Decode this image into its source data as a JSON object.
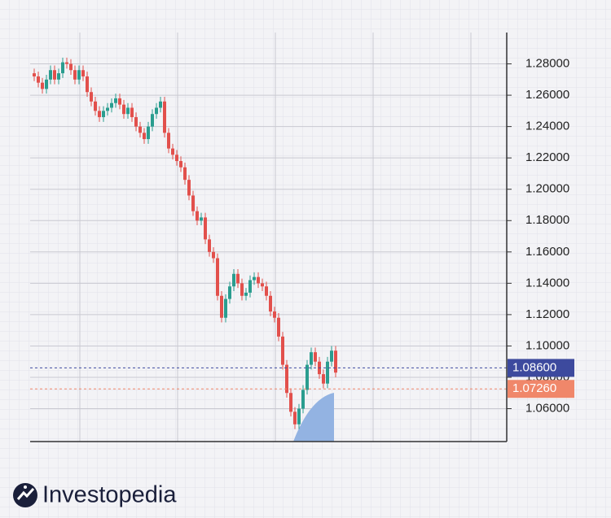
{
  "chart_data": {
    "type": "candlestick",
    "open": [
      1.274,
      1.272,
      1.268,
      1.264,
      1.27,
      1.276,
      1.27,
      1.274,
      1.281,
      1.28,
      1.276,
      1.27,
      1.276,
      1.272,
      1.262,
      1.256,
      1.25,
      1.246,
      1.25,
      1.252,
      1.255,
      1.258,
      1.254,
      1.248,
      1.252,
      1.246,
      1.24,
      1.236,
      1.232,
      1.24,
      1.248,
      1.252,
      1.256,
      1.236,
      1.226,
      1.222,
      1.218,
      1.214,
      1.206,
      1.196,
      1.186,
      1.18,
      1.182,
      1.168,
      1.16,
      1.156,
      1.132,
      1.118,
      1.13,
      1.138,
      1.146,
      1.14,
      1.132,
      1.134,
      1.142,
      1.144,
      1.14,
      1.138,
      1.132,
      1.122,
      1.118,
      1.106,
      1.088,
      1.07,
      1.058,
      1.05,
      1.06,
      1.072,
      1.088,
      1.096,
      1.09,
      1.082,
      1.076,
      1.09,
      1.097
    ],
    "high": [
      1.277,
      1.275,
      1.271,
      1.273,
      1.279,
      1.279,
      1.277,
      1.284,
      1.284,
      1.283,
      1.279,
      1.279,
      1.279,
      1.275,
      1.265,
      1.259,
      1.253,
      1.253,
      1.255,
      1.258,
      1.261,
      1.261,
      1.257,
      1.255,
      1.255,
      1.249,
      1.243,
      1.239,
      1.243,
      1.251,
      1.255,
      1.259,
      1.259,
      1.239,
      1.229,
      1.225,
      1.221,
      1.217,
      1.209,
      1.199,
      1.189,
      1.185,
      1.185,
      1.171,
      1.163,
      1.159,
      1.135,
      1.133,
      1.141,
      1.149,
      1.149,
      1.143,
      1.137,
      1.145,
      1.147,
      1.147,
      1.143,
      1.141,
      1.135,
      1.125,
      1.121,
      1.109,
      1.091,
      1.073,
      1.061,
      1.063,
      1.075,
      1.091,
      1.099,
      1.099,
      1.093,
      1.085,
      1.093,
      1.1,
      1.1
    ],
    "low": [
      1.269,
      1.265,
      1.261,
      1.261,
      1.267,
      1.267,
      1.267,
      1.271,
      1.277,
      1.273,
      1.267,
      1.267,
      1.269,
      1.259,
      1.253,
      1.247,
      1.243,
      1.243,
      1.247,
      1.249,
      1.252,
      1.251,
      1.245,
      1.245,
      1.243,
      1.237,
      1.233,
      1.229,
      1.229,
      1.237,
      1.245,
      1.249,
      1.233,
      1.223,
      1.219,
      1.215,
      1.211,
      1.203,
      1.193,
      1.183,
      1.177,
      1.177,
      1.165,
      1.157,
      1.153,
      1.129,
      1.115,
      1.115,
      1.127,
      1.135,
      1.137,
      1.129,
      1.129,
      1.131,
      1.139,
      1.137,
      1.135,
      1.129,
      1.119,
      1.115,
      1.103,
      1.085,
      1.067,
      1.055,
      1.047,
      1.047,
      1.057,
      1.069,
      1.085,
      1.087,
      1.079,
      1.073,
      1.073,
      1.087,
      1.08
    ],
    "close": [
      1.272,
      1.268,
      1.264,
      1.27,
      1.276,
      1.27,
      1.274,
      1.281,
      1.28,
      1.276,
      1.27,
      1.276,
      1.272,
      1.262,
      1.256,
      1.25,
      1.246,
      1.25,
      1.252,
      1.255,
      1.258,
      1.254,
      1.248,
      1.252,
      1.246,
      1.24,
      1.236,
      1.232,
      1.24,
      1.248,
      1.252,
      1.256,
      1.236,
      1.226,
      1.222,
      1.218,
      1.214,
      1.206,
      1.196,
      1.186,
      1.18,
      1.182,
      1.168,
      1.16,
      1.156,
      1.132,
      1.118,
      1.13,
      1.138,
      1.146,
      1.14,
      1.132,
      1.134,
      1.142,
      1.144,
      1.14,
      1.138,
      1.132,
      1.122,
      1.118,
      1.106,
      1.088,
      1.07,
      1.058,
      1.05,
      1.06,
      1.072,
      1.088,
      1.096,
      1.09,
      1.082,
      1.076,
      1.09,
      1.097,
      1.083
    ],
    "up_color": "#2a9d8f",
    "down_color": "#e2504c",
    "ylim": [
      1.039,
      1.3
    ],
    "yticks": [
      {
        "value": 1.06,
        "label": "1.06000"
      },
      {
        "value": 1.08,
        "label": "1.08000"
      },
      {
        "value": 1.1,
        "label": "1.10000"
      },
      {
        "value": 1.12,
        "label": "1.12000"
      },
      {
        "value": 1.14,
        "label": "1.14000"
      },
      {
        "value": 1.16,
        "label": "1.16000"
      },
      {
        "value": 1.18,
        "label": "1.18000"
      },
      {
        "value": 1.2,
        "label": "1.20000"
      },
      {
        "value": 1.22,
        "label": "1.22000"
      },
      {
        "value": 1.24,
        "label": "1.24000"
      },
      {
        "value": 1.26,
        "label": "1.26000"
      },
      {
        "value": 1.28,
        "label": "1.28000"
      }
    ],
    "grid": true,
    "levels": [
      {
        "value": 1.086,
        "label": "1.08600",
        "color": "#3d4a9e"
      },
      {
        "value": 1.0726,
        "label": "1.07260",
        "color": "#f0876a"
      }
    ]
  },
  "brand": "Investopedia"
}
